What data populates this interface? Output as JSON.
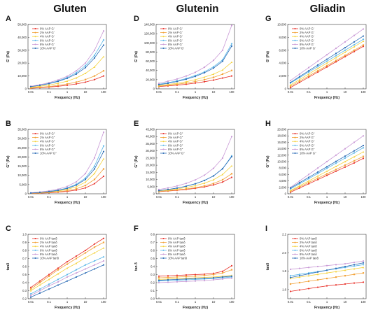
{
  "columns": [
    "Gluten",
    "Glutenin",
    "Gliadin"
  ],
  "colors": [
    "#e8312a",
    "#f2a33a",
    "#f4d23c",
    "#58b6e8",
    "#c99ad6",
    "#2a6bb5"
  ],
  "chart_data": [
    {
      "panel": "A",
      "type": "line",
      "xscale": "log",
      "xlim": [
        0.01,
        100
      ],
      "xticks": [
        "0.01",
        "0.1",
        "1",
        "10",
        "100"
      ],
      "ylim": [
        0,
        50000
      ],
      "yticks": [
        "0",
        "10,000",
        "20,000",
        "30,000",
        "40,000",
        "50,000"
      ],
      "xlabel": "Frequency (Hz)",
      "ylabel": "G' (Pa)",
      "x": [
        0.01,
        0.0316,
        0.1,
        0.316,
        1,
        3.16,
        10,
        31.6,
        100
      ],
      "series": [
        {
          "name": "0% AAP G'",
          "values": [
            500,
            900,
            1400,
            2000,
            2800,
            3800,
            5200,
            7200,
            10000
          ]
        },
        {
          "name": "2% AAP G'",
          "values": [
            700,
            1200,
            1800,
            2700,
            3800,
            5200,
            7200,
            10000,
            14000
          ]
        },
        {
          "name": "4% AAP G'",
          "values": [
            1200,
            2000,
            3000,
            4300,
            6000,
            8500,
            12000,
            17000,
            25000
          ]
        },
        {
          "name": "6% AAP G'",
          "values": [
            1800,
            2900,
            4300,
            6200,
            8800,
            12500,
            18000,
            26000,
            38000
          ]
        },
        {
          "name": "8% AAP G'",
          "values": [
            2000,
            3200,
            4800,
            6900,
            9800,
            14000,
            20000,
            30000,
            45000
          ]
        },
        {
          "name": "10% AAP G'",
          "values": [
            1700,
            2700,
            4000,
            5800,
            8200,
            11500,
            16500,
            24000,
            34000
          ]
        }
      ]
    },
    {
      "panel": "B",
      "type": "line",
      "xscale": "log",
      "xlim": [
        0.01,
        100
      ],
      "xticks": [
        "0.01",
        "0.1",
        "1",
        "10",
        "100"
      ],
      "ylim": [
        0,
        35000
      ],
      "yticks": [
        "0",
        "5,000",
        "10,000",
        "15,000",
        "20,000",
        "25,000",
        "30,000",
        "35,000"
      ],
      "xlabel": "Frequency (Hz)",
      "ylabel": "G'' (Pa)",
      "x": [
        0.01,
        0.0316,
        0.1,
        0.316,
        1,
        3.16,
        10,
        31.6,
        100
      ],
      "series": [
        {
          "name": "0% AAP G''",
          "values": [
            200,
            350,
            550,
            850,
            1300,
            2000,
            3200,
            5500,
            9500
          ]
        },
        {
          "name": "2% AAP G''",
          "values": [
            250,
            450,
            700,
            1100,
            1700,
            2700,
            4500,
            7800,
            13500
          ]
        },
        {
          "name": "4% AAP G''",
          "values": [
            350,
            600,
            950,
            1500,
            2400,
            3800,
            6300,
            11000,
            19000
          ]
        },
        {
          "name": "6% AAP G''",
          "values": [
            450,
            800,
            1300,
            2000,
            3200,
            5200,
            8500,
            15000,
            26000
          ]
        },
        {
          "name": "8% AAP G''",
          "values": [
            550,
            950,
            1600,
            2500,
            4000,
            6500,
            11000,
            19500,
            33500
          ]
        },
        {
          "name": "10% AAP G''",
          "values": [
            400,
            700,
            1150,
            1800,
            2900,
            4700,
            7800,
            13500,
            23000
          ]
        }
      ]
    },
    {
      "panel": "C",
      "type": "line",
      "xscale": "log",
      "xlim": [
        0.01,
        100
      ],
      "xticks": [
        "0.01",
        "0.1",
        "1",
        "10",
        "100"
      ],
      "ylim": [
        0.2,
        1.0
      ],
      "yticks": [
        "0.2",
        "0.3",
        "0.4",
        "0.5",
        "0.6",
        "0.7",
        "0.8",
        "0.9",
        "1.0"
      ],
      "xlabel": "Frequency (Hz)",
      "ylabel": "tanδ",
      "x": [
        0.01,
        0.0316,
        0.1,
        0.316,
        1,
        3.16,
        10,
        31.6,
        100
      ],
      "series": [
        {
          "name": "0% AAP tanδ",
          "values": [
            0.34,
            0.42,
            0.5,
            0.58,
            0.66,
            0.73,
            0.8,
            0.88,
            0.95
          ]
        },
        {
          "name": "2% AAP tanδ",
          "values": [
            0.32,
            0.4,
            0.48,
            0.56,
            0.63,
            0.7,
            0.77,
            0.84,
            0.9
          ]
        },
        {
          "name": "4% AAP tanδ",
          "values": [
            0.3,
            0.37,
            0.44,
            0.51,
            0.58,
            0.64,
            0.71,
            0.77,
            0.83
          ]
        },
        {
          "name": "6% AAP tanδ",
          "values": [
            0.26,
            0.32,
            0.38,
            0.44,
            0.5,
            0.56,
            0.62,
            0.67,
            0.72
          ]
        },
        {
          "name": "8% AAP tanδ",
          "values": [
            0.24,
            0.3,
            0.36,
            0.41,
            0.47,
            0.52,
            0.57,
            0.62,
            0.67
          ]
        },
        {
          "name": "10% AAP tanδ",
          "values": [
            0.22,
            0.27,
            0.32,
            0.37,
            0.42,
            0.47,
            0.52,
            0.57,
            0.62
          ]
        }
      ]
    },
    {
      "panel": "D",
      "type": "line",
      "xscale": "log",
      "xlim": [
        0.01,
        100
      ],
      "xticks": [
        "0.01",
        "0.1",
        "1",
        "10",
        "100"
      ],
      "ylim": [
        0,
        140000
      ],
      "yticks": [
        "0",
        "20,000",
        "40,000",
        "60,000",
        "80,000",
        "100,000",
        "120,000",
        "140,000"
      ],
      "xlabel": "Frequency (Hz)",
      "ylabel": "G' (Pa)",
      "x": [
        0.01,
        0.0316,
        0.1,
        0.316,
        1,
        3.16,
        10,
        31.6,
        100
      ],
      "series": [
        {
          "name": "0% AAP G'",
          "values": [
            5000,
            6500,
            8000,
            10000,
            12500,
            15500,
            19000,
            23500,
            28000
          ]
        },
        {
          "name": "2% AAP G'",
          "values": [
            6000,
            8000,
            10000,
            12500,
            16000,
            20000,
            25000,
            32000,
            40000
          ]
        },
        {
          "name": "4% AAP G'",
          "values": [
            7000,
            9500,
            12000,
            15500,
            20000,
            25500,
            32000,
            41000,
            58000
          ]
        },
        {
          "name": "6% AAP G'",
          "values": [
            10000,
            13500,
            17500,
            22500,
            29000,
            37000,
            48000,
            63000,
            98000
          ]
        },
        {
          "name": "8% AAP G'",
          "values": [
            12000,
            16500,
            21500,
            28000,
            36000,
            47000,
            62000,
            84000,
            138000
          ]
        },
        {
          "name": "10% AAP G'",
          "values": [
            9000,
            12000,
            16000,
            21000,
            27000,
            35000,
            45000,
            60000,
            93000
          ]
        }
      ]
    },
    {
      "panel": "E",
      "type": "line",
      "xscale": "log",
      "xlim": [
        0.01,
        100
      ],
      "xticks": [
        "0.01",
        "0.1",
        "1",
        "10",
        "100"
      ],
      "ylim": [
        0,
        45000
      ],
      "yticks": [
        "0",
        "5,000",
        "10,000",
        "15,000",
        "20,000",
        "25,000",
        "30,000",
        "35,000",
        "40,000",
        "45,000"
      ],
      "xlabel": "Frequency (Hz)",
      "ylabel": "G'' (Pa)",
      "x": [
        0.01,
        0.0316,
        0.1,
        0.316,
        1,
        3.16,
        10,
        31.6,
        100
      ],
      "series": [
        {
          "name": "0% AAP G''",
          "values": [
            1500,
            1900,
            2400,
            3000,
            3800,
            4800,
            6200,
            8200,
            11500
          ]
        },
        {
          "name": "2% AAP G''",
          "values": [
            1600,
            2100,
            2700,
            3400,
            4300,
            5500,
            7200,
            9800,
            14000
          ]
        },
        {
          "name": "4% AAP G''",
          "values": [
            2000,
            2600,
            3400,
            4400,
            5700,
            7400,
            9800,
            13500,
            19500
          ]
        },
        {
          "name": "6% AAP G''",
          "values": [
            2200,
            3000,
            4000,
            5300,
            7000,
            9300,
            12500,
            17500,
            26500
          ]
        },
        {
          "name": "8% AAP G''",
          "values": [
            3000,
            4100,
            5500,
            7300,
            9700,
            13000,
            17800,
            25000,
            40000
          ]
        },
        {
          "name": "10% AAP G''",
          "values": [
            2200,
            3000,
            4000,
            5300,
            7000,
            9300,
            12500,
            17500,
            26000
          ]
        }
      ]
    },
    {
      "panel": "F",
      "type": "line",
      "xscale": "log",
      "xlim": [
        0.01,
        100
      ],
      "xticks": [
        "0.01",
        "0.1",
        "1",
        "10",
        "100"
      ],
      "ylim": [
        0.0,
        0.8
      ],
      "yticks": [
        "0.0",
        "0.1",
        "0.2",
        "0.3",
        "0.4",
        "0.5",
        "0.6",
        "0.7",
        "0.8"
      ],
      "xlabel": "Frequency (Hz)",
      "ylabel": "tan δ",
      "x": [
        0.01,
        0.0316,
        0.1,
        0.316,
        1,
        3.16,
        10,
        31.6,
        100
      ],
      "series": [
        {
          "name": "0% AAP tanδ",
          "values": [
            0.28,
            0.285,
            0.29,
            0.295,
            0.3,
            0.305,
            0.315,
            0.34,
            0.41
          ]
        },
        {
          "name": "2% AAP tanδ",
          "values": [
            0.26,
            0.265,
            0.27,
            0.275,
            0.28,
            0.29,
            0.3,
            0.32,
            0.36
          ]
        },
        {
          "name": "4% AAP tanδ",
          "values": [
            0.24,
            0.245,
            0.25,
            0.255,
            0.26,
            0.265,
            0.27,
            0.28,
            0.29
          ]
        },
        {
          "name": "6% AAP tanδ",
          "values": [
            0.22,
            0.225,
            0.23,
            0.235,
            0.24,
            0.245,
            0.25,
            0.26,
            0.27
          ]
        },
        {
          "name": "8% AAP tanδ",
          "values": [
            0.2,
            0.205,
            0.21,
            0.215,
            0.22,
            0.225,
            0.235,
            0.245,
            0.255
          ]
        },
        {
          "name": "10% AAP tanδ",
          "values": [
            0.23,
            0.235,
            0.24,
            0.245,
            0.25,
            0.255,
            0.26,
            0.27,
            0.28
          ]
        }
      ]
    },
    {
      "panel": "G",
      "type": "line",
      "xscale": "log",
      "xlim": [
        0.01,
        100
      ],
      "xticks": [
        "0.01",
        "0.1",
        "1",
        "10",
        "100"
      ],
      "ylim": [
        0,
        10000
      ],
      "yticks": [
        "0",
        "2,000",
        "4,000",
        "6,000",
        "8,000",
        "10,000"
      ],
      "xlabel": "Frequency (Hz)",
      "ylabel": "G' (Pa)",
      "x": [
        0.01,
        0.0316,
        0.1,
        0.316,
        1,
        3.16,
        10,
        31.6,
        100
      ],
      "series": [
        {
          "name": "0% AAP G'",
          "values": [
            200,
            1000,
            1800,
            2600,
            3400,
            4200,
            5000,
            5800,
            6600
          ]
        },
        {
          "name": "2% AAP G'",
          "values": [
            400,
            1200,
            2000,
            2800,
            3600,
            4400,
            5200,
            6000,
            6800
          ]
        },
        {
          "name": "4% AAP G'",
          "values": [
            600,
            1450,
            2300,
            3150,
            4000,
            4850,
            5700,
            6550,
            7400
          ]
        },
        {
          "name": "6% AAP G'",
          "values": [
            900,
            1750,
            2600,
            3450,
            4300,
            5150,
            6000,
            6850,
            7700
          ]
        },
        {
          "name": "8% AAP G'",
          "values": [
            1300,
            2300,
            3300,
            4300,
            5300,
            6300,
            7300,
            8300,
            9300
          ]
        },
        {
          "name": "10% AAP G'",
          "values": [
            1000,
            1900,
            2800,
            3700,
            4600,
            5500,
            6400,
            7300,
            8200
          ]
        }
      ]
    },
    {
      "panel": "H",
      "type": "line",
      "xscale": "log",
      "xlim": [
        0.01,
        100
      ],
      "xticks": [
        "0.01",
        "0.1",
        "1",
        "10",
        "100"
      ],
      "ylim": [
        0,
        20000
      ],
      "yticks": [
        "0",
        "2,000",
        "4,000",
        "6,000",
        "8,000",
        "10,000",
        "12,000",
        "14,000",
        "16,000",
        "18,000",
        "20,000"
      ],
      "xlabel": "Frequency (Hz)",
      "ylabel": "G'' (Pa)",
      "x": [
        0.01,
        0.0316,
        0.1,
        0.316,
        1,
        3.16,
        10,
        31.6,
        100
      ],
      "series": [
        {
          "name": "0% AAP G''",
          "values": [
            500,
            1800,
            3100,
            4400,
            5700,
            7000,
            8300,
            9600,
            11000
          ]
        },
        {
          "name": "2% AAP G''",
          "values": [
            800,
            2150,
            3500,
            4850,
            6200,
            7550,
            8900,
            10250,
            11600
          ]
        },
        {
          "name": "4% AAP G''",
          "values": [
            1000,
            2500,
            4000,
            5500,
            7000,
            8500,
            10000,
            11500,
            13000
          ]
        },
        {
          "name": "6% AAP G''",
          "values": [
            1500,
            3100,
            4700,
            6300,
            7900,
            9500,
            11100,
            12700,
            14300
          ]
        },
        {
          "name": "8% AAP G''",
          "values": [
            2000,
            4000,
            6000,
            8000,
            10000,
            12000,
            14000,
            16000,
            18000
          ]
        },
        {
          "name": "10% AAP G''",
          "values": [
            1800,
            3450,
            5100,
            6750,
            8400,
            10050,
            11700,
            13350,
            15000
          ]
        }
      ]
    },
    {
      "panel": "I",
      "type": "line",
      "xscale": "log",
      "xlim": [
        0.01,
        100
      ],
      "xticks": [
        "0.01",
        "0.1",
        "1",
        "10",
        "100"
      ],
      "ylim": [
        1.5,
        2.2
      ],
      "yticks": [
        "1.6",
        "1.8",
        "2.0",
        "2.2"
      ],
      "xlabel": "Frequency (Hz)",
      "ylabel": "tanδ",
      "x": [
        0.01,
        0.0316,
        0.1,
        0.316,
        1,
        3.16,
        10,
        31.6,
        100
      ],
      "series": [
        {
          "name": "0% AAP tanδ",
          "values": [
            1.58,
            1.595,
            1.61,
            1.625,
            1.64,
            1.65,
            1.66,
            1.67,
            1.68
          ]
        },
        {
          "name": "2% AAP tanδ",
          "values": [
            1.66,
            1.675,
            1.69,
            1.705,
            1.72,
            1.735,
            1.75,
            1.765,
            1.78
          ]
        },
        {
          "name": "4% AAP tanδ",
          "values": [
            1.72,
            1.735,
            1.75,
            1.765,
            1.78,
            1.795,
            1.81,
            1.825,
            1.84
          ]
        },
        {
          "name": "6% AAP tanδ",
          "values": [
            1.75,
            1.765,
            1.78,
            1.795,
            1.81,
            1.825,
            1.84,
            1.855,
            1.87
          ]
        },
        {
          "name": "8% AAP tanδ",
          "values": [
            1.82,
            1.83,
            1.84,
            1.85,
            1.86,
            1.87,
            1.88,
            1.895,
            1.91
          ]
        },
        {
          "name": "10% AAP tanδ",
          "values": [
            1.73,
            1.75,
            1.77,
            1.79,
            1.81,
            1.83,
            1.85,
            1.87,
            1.89
          ]
        }
      ]
    }
  ]
}
